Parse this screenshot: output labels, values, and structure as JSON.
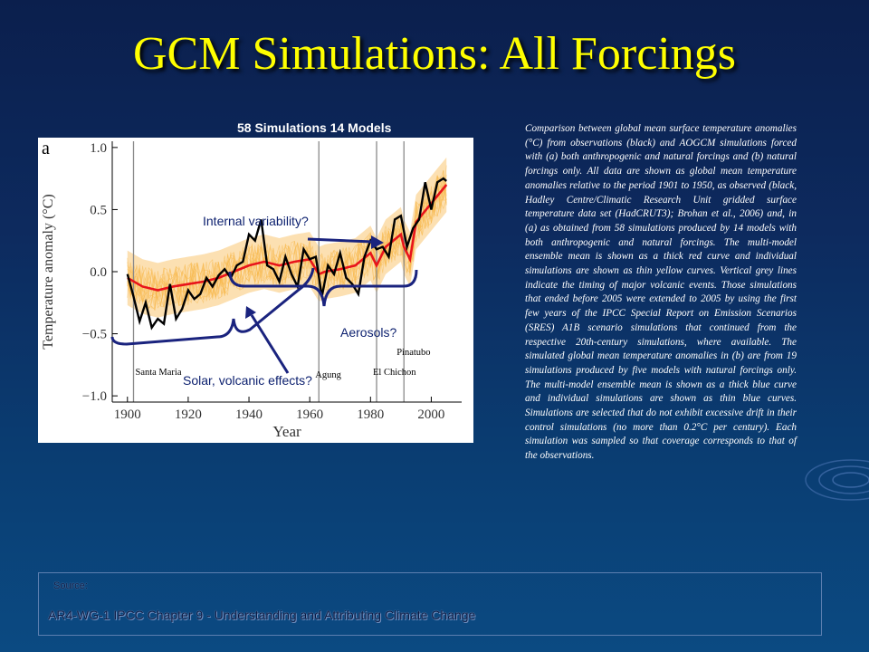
{
  "slide": {
    "title": "GCM Simulations:  All Forcings",
    "chart_caption": "58 Simulations  14 Models",
    "description": "Comparison between global mean surface temperature anomalies (°C) from observations (black) and AOGCM simulations forced with (a) both anthropogenic and natural forcings and (b) natural forcings only. All data are shown as global mean temperature anomalies relative to the period 1901 to 1950, as observed (black, Hadley Centre/Climatic Research Unit gridded surface temperature data set (HadCRUT3); Brohan et al., 2006) and, in (a) as obtained from 58 simulations produced by 14 models with both anthropogenic and natural forcings. The multi-model ensemble mean is shown as a thick red curve and individual simulations are shown as thin yellow curves. Vertical grey lines indicate the timing of major volcanic events. Those simulations that ended before 2005 were extended to 2005 by using the first few years of the IPCC Special Report on Emission Scenarios (SRES) A1B scenario simulations that continued from the respective 20th-century simulations, where available. The simulated global mean temperature anomalies in (b) are from 19 simulations produced by five models with natural forcings only. The multi-model ensemble mean is shown as a thick blue curve and individual simulations are shown as thin blue curves. Simulations are selected that do not exhibit excessive drift in their control simulations (no more than 0.2°C per century). Each simulation was sampled so that coverage corresponds to that of the observations.",
    "source_label": "Source:",
    "source_text": "AR4-WG-1 IPCC Chapter 9 - Understanding and Attributing Climate Change"
  },
  "annotations": {
    "internal_variability": "Internal variability?",
    "aerosols": "Aerosols?",
    "solar_volcanic": "Solar, volcanic effects?"
  },
  "colors": {
    "title": "#ffff00",
    "observations": "#000000",
    "ensemble_mean": "#e8141b",
    "simulations": "#f5a623",
    "volcano_lines": "#8a8a8a",
    "annotation": "#1a237e"
  },
  "chart_data": {
    "type": "line",
    "panel_label": "a",
    "xlabel": "Year",
    "ylabel": "Temperature anomaly (°C)",
    "xlim": [
      1895,
      2010
    ],
    "ylim": [
      -1.05,
      1.05
    ],
    "xticks": [
      1900,
      1920,
      1940,
      1960,
      1980,
      2000
    ],
    "yticks": [
      -1.0,
      -0.5,
      0.0,
      0.5,
      1.0
    ],
    "volcanic_events": [
      {
        "name": "Santa Maria",
        "year": 1902
      },
      {
        "name": "Agung",
        "year": 1963
      },
      {
        "name": "El Chichon",
        "year": 1982
      },
      {
        "name": "Pinatubo",
        "year": 1991
      }
    ],
    "series": [
      {
        "role": "observations",
        "x": [
          1900,
          1902,
          1904,
          1906,
          1908,
          1910,
          1912,
          1914,
          1916,
          1918,
          1920,
          1922,
          1924,
          1926,
          1928,
          1930,
          1932,
          1934,
          1936,
          1938,
          1940,
          1942,
          1944,
          1946,
          1948,
          1950,
          1952,
          1954,
          1956,
          1958,
          1960,
          1962,
          1964,
          1966,
          1968,
          1970,
          1972,
          1974,
          1976,
          1978,
          1980,
          1982,
          1984,
          1986,
          1988,
          1990,
          1992,
          1994,
          1996,
          1998,
          2000,
          2002,
          2004,
          2005
        ],
        "y": [
          -0.02,
          -0.2,
          -0.4,
          -0.25,
          -0.45,
          -0.38,
          -0.42,
          -0.1,
          -0.38,
          -0.3,
          -0.15,
          -0.22,
          -0.18,
          -0.05,
          -0.12,
          -0.03,
          0.02,
          -0.05,
          0.05,
          0.08,
          0.3,
          0.25,
          0.42,
          0.05,
          0.02,
          -0.08,
          0.12,
          -0.02,
          -0.12,
          0.18,
          0.1,
          0.12,
          -0.2,
          0.05,
          -0.02,
          0.15,
          -0.05,
          -0.1,
          -0.18,
          0.12,
          0.25,
          0.18,
          0.2,
          0.12,
          0.42,
          0.45,
          0.2,
          0.35,
          0.42,
          0.72,
          0.5,
          0.72,
          0.75,
          0.73
        ]
      },
      {
        "role": "ensemble_mean",
        "x": [
          1900,
          1905,
          1910,
          1915,
          1920,
          1925,
          1930,
          1935,
          1940,
          1945,
          1950,
          1955,
          1960,
          1963,
          1965,
          1970,
          1975,
          1980,
          1982,
          1985,
          1990,
          1991,
          1993,
          1995,
          2000,
          2005
        ],
        "y": [
          -0.05,
          -0.12,
          -0.15,
          -0.12,
          -0.1,
          -0.08,
          -0.05,
          0.0,
          0.05,
          0.08,
          0.05,
          0.08,
          0.1,
          -0.02,
          0.0,
          0.02,
          0.05,
          0.15,
          0.05,
          0.2,
          0.3,
          0.2,
          0.1,
          0.4,
          0.55,
          0.7
        ]
      }
    ]
  }
}
